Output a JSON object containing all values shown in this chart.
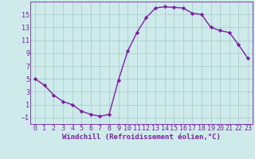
{
  "hours": [
    0,
    1,
    2,
    3,
    4,
    5,
    6,
    7,
    8,
    9,
    10,
    11,
    12,
    13,
    14,
    15,
    16,
    17,
    18,
    19,
    20,
    21,
    22,
    23
  ],
  "values": [
    5,
    4,
    2.5,
    1.5,
    1,
    0,
    -0.5,
    -0.8,
    -0.5,
    4.8,
    9.3,
    12.2,
    14.5,
    16,
    16.2,
    16.1,
    16.0,
    15.2,
    15.0,
    13.0,
    12.5,
    12.2,
    10.3,
    8.2
  ],
  "line_color": "#7b1fa2",
  "marker": "D",
  "marker_size": 2.2,
  "bg_color": "#ceeaea",
  "grid_color": "#aacece",
  "xlabel": "Windchill (Refroidissement éolien,°C)",
  "xlim": [
    -0.5,
    23.5
  ],
  "ylim": [
    -2,
    17
  ],
  "yticks": [
    -1,
    1,
    3,
    5,
    7,
    9,
    11,
    13,
    15
  ],
  "xticks": [
    0,
    1,
    2,
    3,
    4,
    5,
    6,
    7,
    8,
    9,
    10,
    11,
    12,
    13,
    14,
    15,
    16,
    17,
    18,
    19,
    20,
    21,
    22,
    23
  ],
  "xlabel_fontsize": 6.5,
  "tick_fontsize": 6.0,
  "line_width": 1.0
}
